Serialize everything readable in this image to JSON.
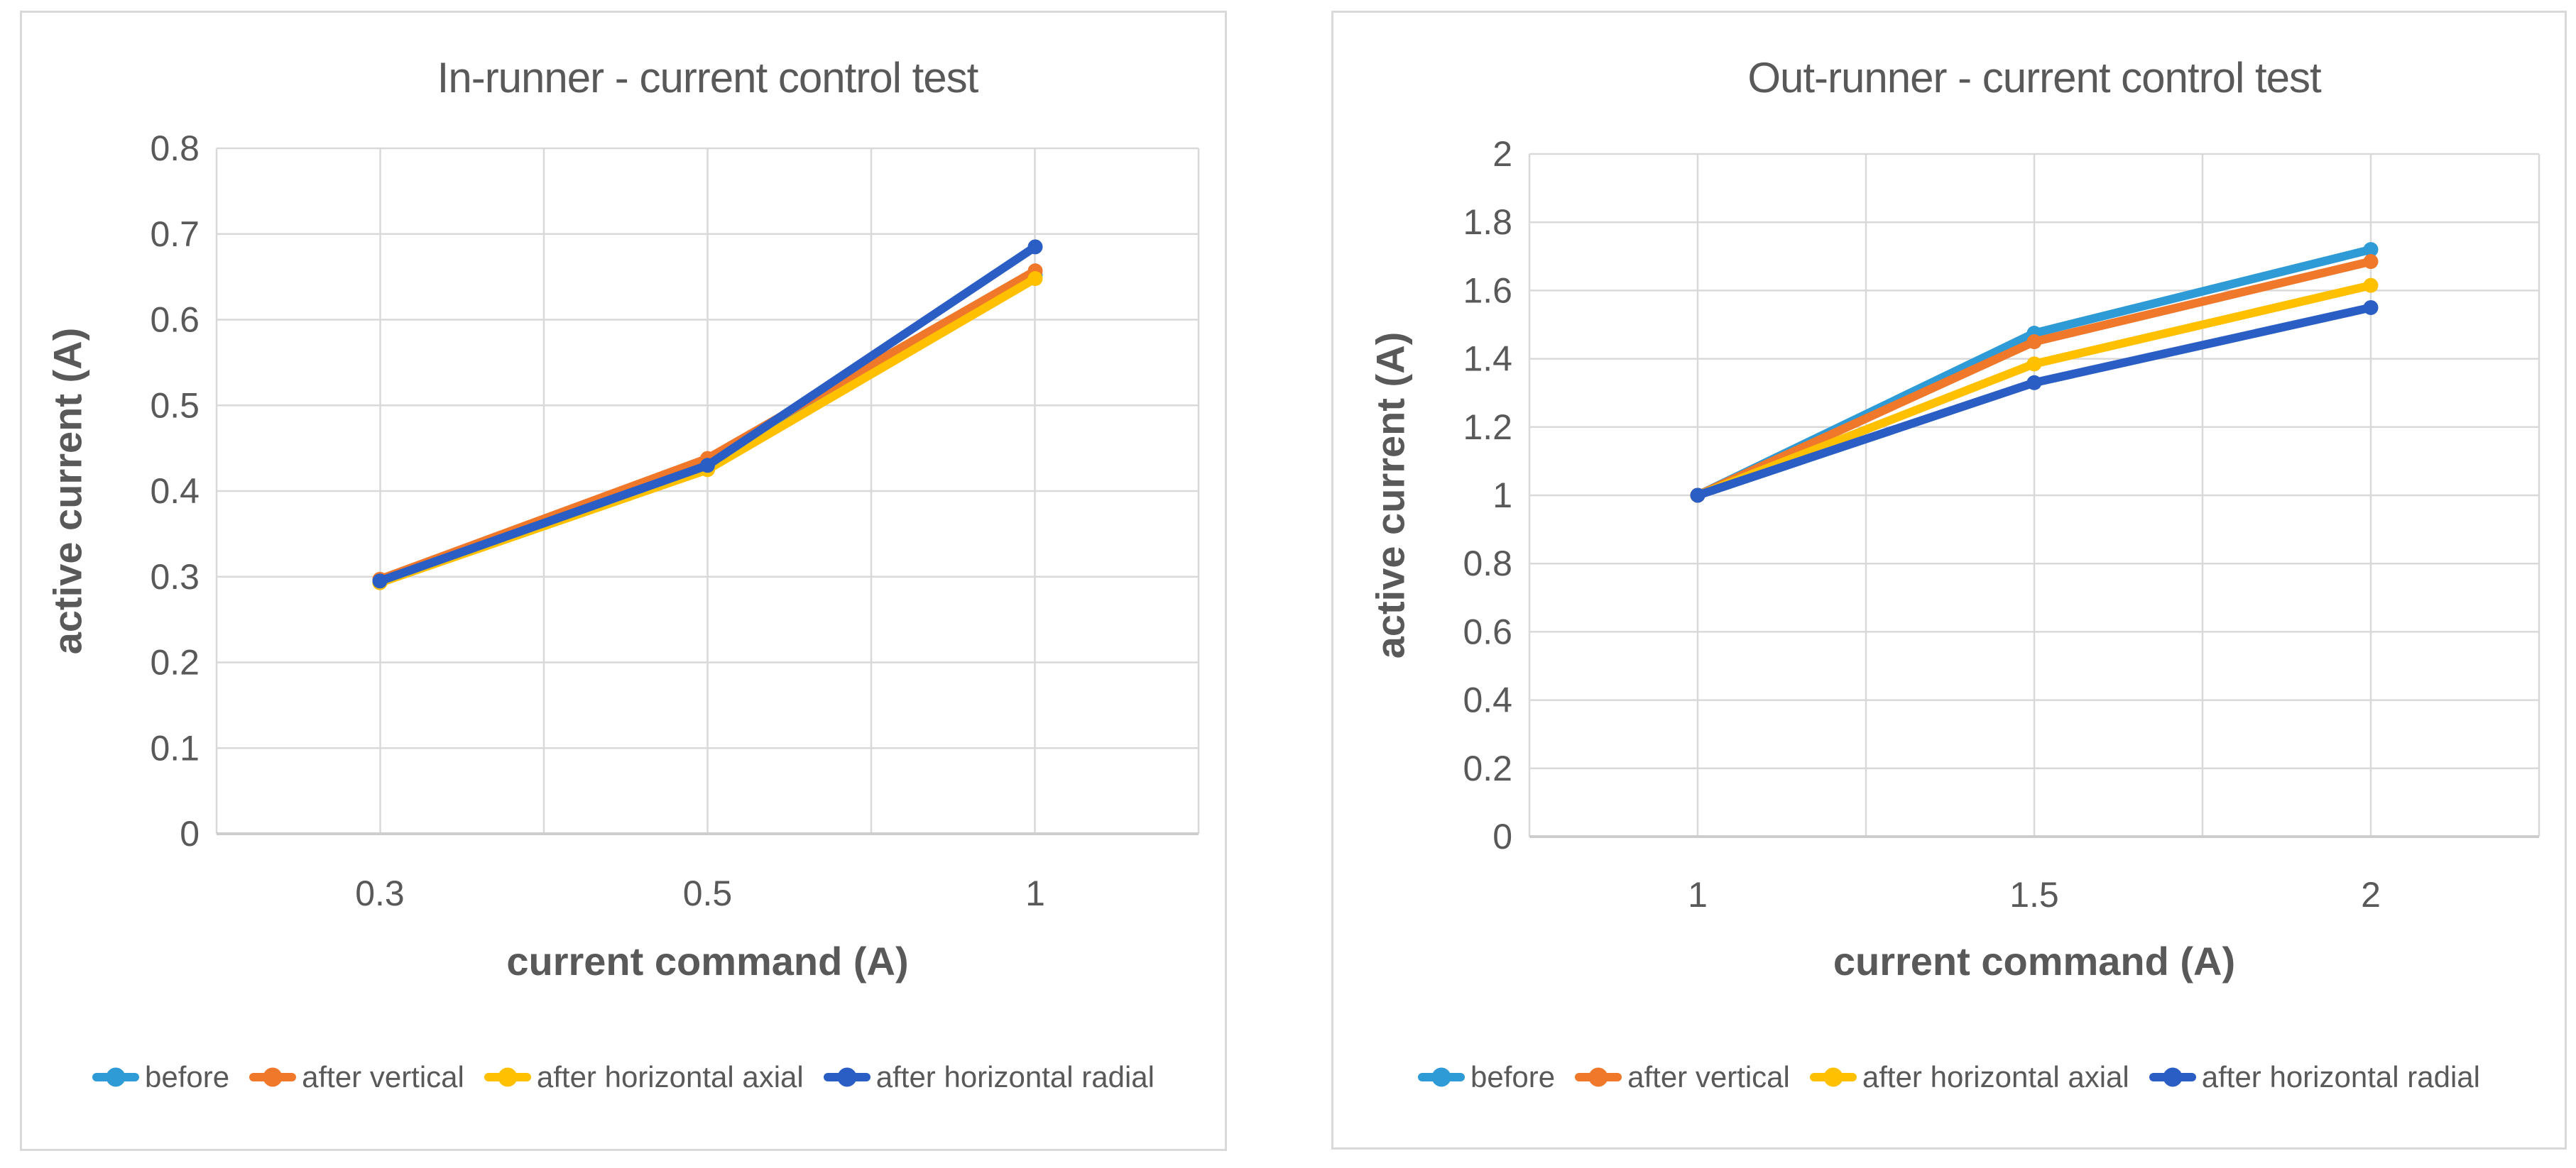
{
  "page": {
    "background": "#ffffff",
    "panel_border_color": "#d9d9d9",
    "text_color": "#595959",
    "gridline_color": "#d9d9d9",
    "axis_line_color": "#cdcdcd"
  },
  "chart_data": [
    {
      "type": "line",
      "title": "In-runner - current control test",
      "xlabel": "current command (A)",
      "ylabel": "active current (A)",
      "categories": [
        "0.3",
        "0.5",
        "1"
      ],
      "ylim": [
        0,
        0.8
      ],
      "ytick_labels": [
        "0",
        "0.1",
        "0.2",
        "0.3",
        "0.4",
        "0.5",
        "0.6",
        "0.7",
        "0.8"
      ],
      "grid": true,
      "legend_position": "bottom",
      "marker": "circle",
      "series": [
        {
          "name": "before",
          "color": "#2E9BD6",
          "values": [
            0.295,
            0.435,
            0.652
          ]
        },
        {
          "name": "after vertical",
          "color": "#F0782A",
          "values": [
            0.297,
            0.438,
            0.657
          ]
        },
        {
          "name": "after horizontal axial",
          "color": "#FFC000",
          "values": [
            0.293,
            0.425,
            0.648
          ]
        },
        {
          "name": "after horizontal radial",
          "color": "#2A5EC4",
          "values": [
            0.295,
            0.43,
            0.685
          ]
        }
      ]
    },
    {
      "type": "line",
      "title": "Out-runner - current control test",
      "xlabel": "current command (A)",
      "ylabel": "active current (A)",
      "categories": [
        "1",
        "1.5",
        "2"
      ],
      "ylim": [
        0,
        2
      ],
      "ytick_labels": [
        "0",
        "0.2",
        "0.4",
        "0.6",
        "0.8",
        "1",
        "1.2",
        "1.4",
        "1.6",
        "1.8",
        "2"
      ],
      "grid": true,
      "legend_position": "bottom",
      "marker": "circle",
      "series": [
        {
          "name": "before",
          "color": "#2E9BD6",
          "values": [
            1.0,
            1.475,
            1.72
          ]
        },
        {
          "name": "after vertical",
          "color": "#F0782A",
          "values": [
            1.0,
            1.45,
            1.685
          ]
        },
        {
          "name": "after horizontal axial",
          "color": "#FFC000",
          "values": [
            1.0,
            1.385,
            1.615
          ]
        },
        {
          "name": "after horizontal radial",
          "color": "#2A5EC4",
          "values": [
            1.0,
            1.33,
            1.55
          ]
        }
      ]
    }
  ]
}
